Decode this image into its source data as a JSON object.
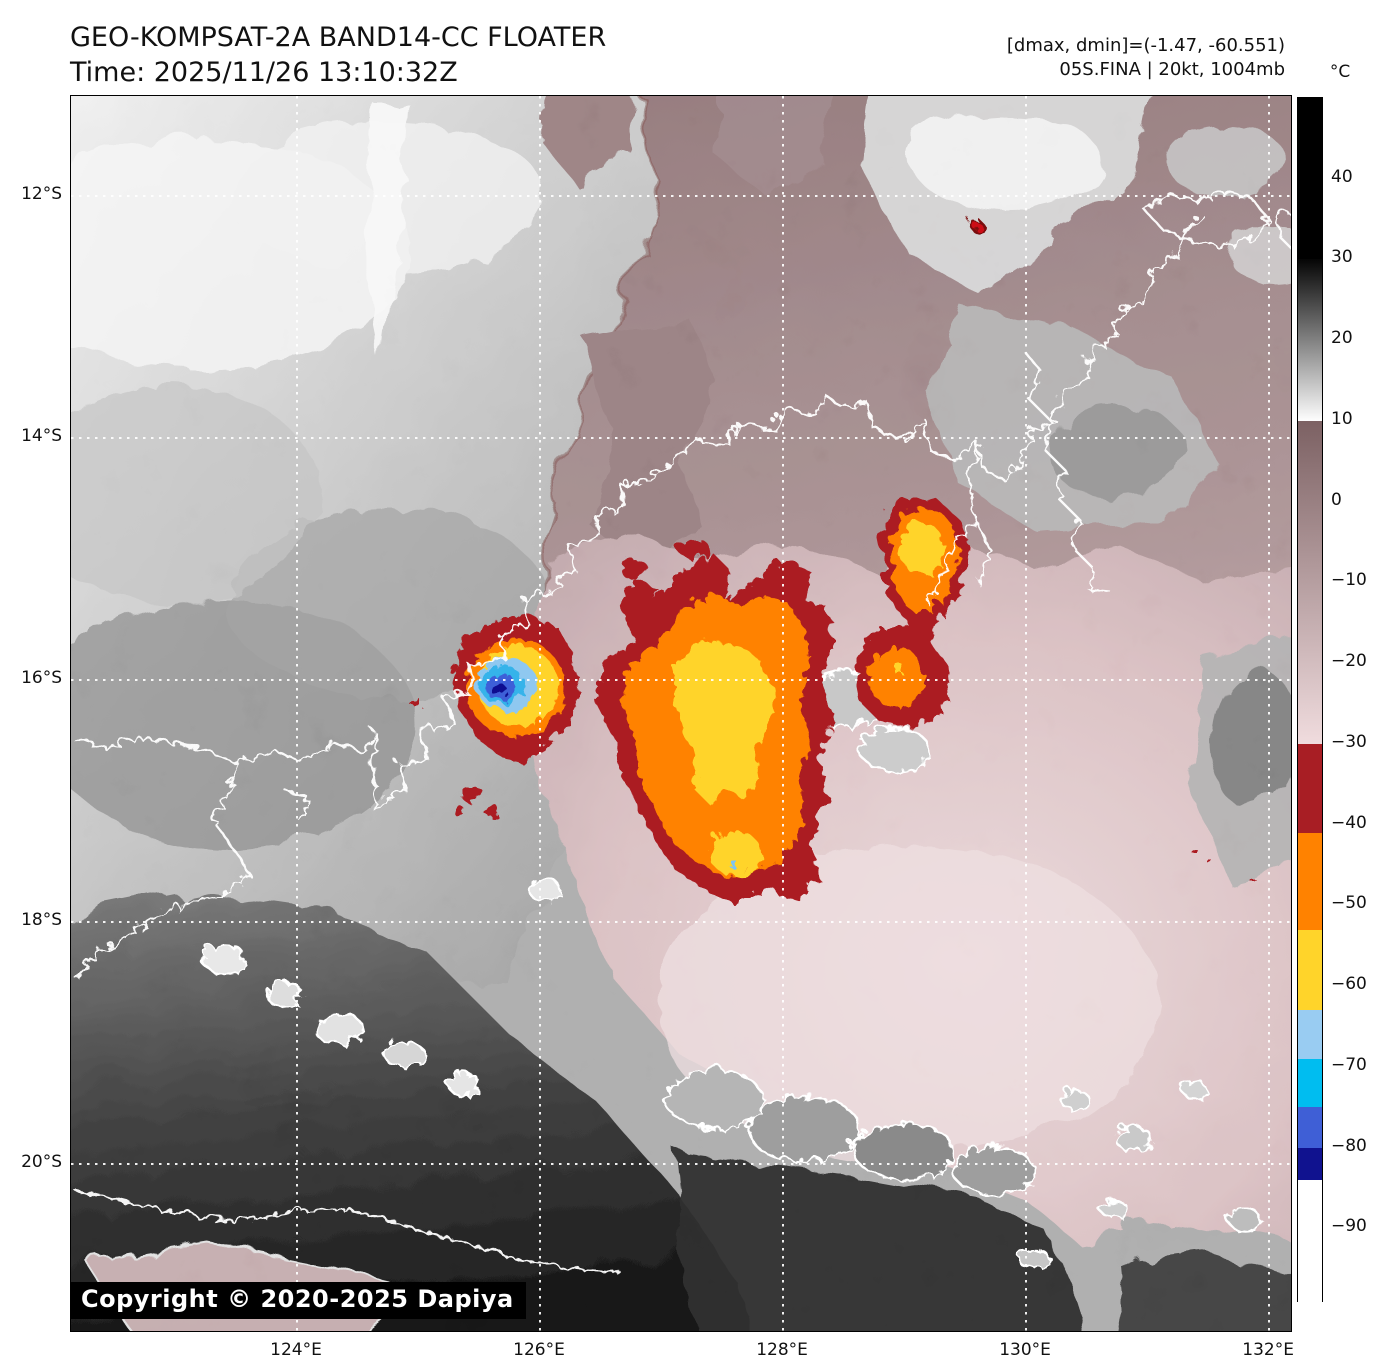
{
  "header": {
    "title": "GEO-KOMPSAT-2A BAND14-CC FLOATER",
    "time_line": "Time: 2025/11/26 13:10:32Z",
    "dmax_dmin_line": "[dmax, dmin]=(-1.47, -60.551)",
    "storm_line": "05S.FINA | 20kt, 1004mb"
  },
  "map": {
    "copyright": "Copyright © 2020-2025 Dapiya"
  },
  "chart_data": {
    "type": "heatmap",
    "title": "GEO-KOMPSAT-2A BAND14-CC FLOATER",
    "subtitle": "Time: 2025/11/26 13:10:32Z",
    "annotations": [
      "[dmax, dmin]=(-1.47, -60.551)",
      "05S.FINA | 20kt, 1004mb"
    ],
    "grid": "dotted-white",
    "axes": {
      "lon": {
        "min": 122.14,
        "max": 132.18,
        "unit": "°E",
        "ticks": [
          {
            "value": 124,
            "label": "124°E"
          },
          {
            "value": 126,
            "label": "126°E"
          },
          {
            "value": 128,
            "label": "128°E"
          },
          {
            "value": 130,
            "label": "130°E"
          },
          {
            "value": 132,
            "label": "132°E"
          }
        ]
      },
      "lat_south": {
        "min": 11.17,
        "max": 21.38,
        "unit": "°S",
        "ticks": [
          {
            "value": 12,
            "label": "12°S"
          },
          {
            "value": 14,
            "label": "14°S"
          },
          {
            "value": 16,
            "label": "16°S"
          },
          {
            "value": 18,
            "label": "18°S"
          },
          {
            "value": 20,
            "label": "20°S"
          }
        ]
      }
    },
    "colorbar": {
      "unit": "°C",
      "top_value": 50,
      "bottom_value": -99,
      "ticks": [
        {
          "value": 40,
          "label": "40"
        },
        {
          "value": 30,
          "label": "30"
        },
        {
          "value": 20,
          "label": "20"
        },
        {
          "value": 10,
          "label": "10"
        },
        {
          "value": 0,
          "label": "0"
        },
        {
          "value": -10,
          "label": "−10"
        },
        {
          "value": -20,
          "label": "−20"
        },
        {
          "value": -30,
          "label": "−30"
        },
        {
          "value": -40,
          "label": "−40"
        },
        {
          "value": -50,
          "label": "−50"
        },
        {
          "value": -60,
          "label": "−60"
        },
        {
          "value": -70,
          "label": "−70"
        },
        {
          "value": -80,
          "label": "−80"
        },
        {
          "value": -90,
          "label": "−90"
        }
      ],
      "segments": [
        {
          "from": 50,
          "to": 30,
          "color": "#000000"
        },
        {
          "from": 30,
          "to": 10,
          "color_start": "#050505",
          "color_end": "#ffffff"
        },
        {
          "from": 10,
          "to": -30,
          "color_start": "#7c6163",
          "color_end": "#f0dcde"
        },
        {
          "from": -30,
          "to": -41,
          "color": "#a81e24"
        },
        {
          "from": -41,
          "to": -53,
          "color": "#ff8200"
        },
        {
          "from": -53,
          "to": -63,
          "color": "#ffd42a"
        },
        {
          "from": -63,
          "to": -69,
          "color": "#99ccf2"
        },
        {
          "from": -69,
          "to": -75,
          "color": "#00bdf0"
        },
        {
          "from": -75,
          "to": -80,
          "color": "#3f5fd6"
        },
        {
          "from": -80,
          "to": -84,
          "color": "#10128f"
        },
        {
          "from": -84,
          "to": -99,
          "color": "#ffffff"
        }
      ]
    }
  }
}
